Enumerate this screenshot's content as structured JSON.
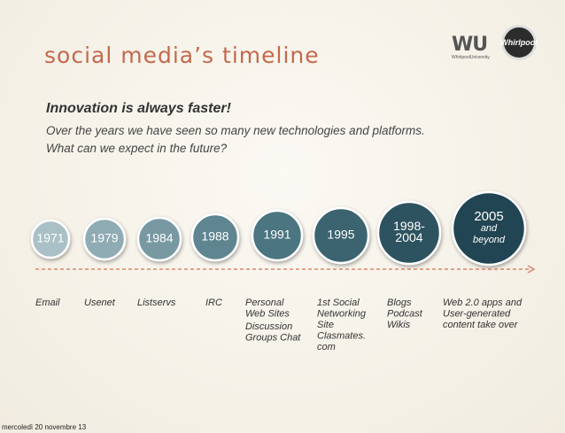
{
  "header": {
    "title": "social media’s timeline",
    "logo_text": "WU",
    "logo_subtext": "WhirlpoolUniversity",
    "badge_text": "Whirlpool"
  },
  "intro": {
    "heading": "Innovation is always faster!",
    "lines": [
      "Over the years we have seen so many new technologies and platforms.",
      "What can we expect in the  future?"
    ]
  },
  "timeline": [
    {
      "year": [
        "1971"
      ],
      "label": [
        "Email"
      ]
    },
    {
      "year": [
        "1979"
      ],
      "label": [
        "Usenet"
      ]
    },
    {
      "year": [
        "1984"
      ],
      "label": [
        "Listservs"
      ]
    },
    {
      "year": [
        "1988"
      ],
      "label": [
        "IRC"
      ]
    },
    {
      "year": [
        "1991"
      ],
      "label": [
        "Personal",
        "Web Sites",
        "Discussion",
        "Groups Chat"
      ]
    },
    {
      "year": [
        "1995"
      ],
      "label": [
        "1st Social",
        "Networking",
        "Site",
        "Clasmates.",
        "com"
      ]
    },
    {
      "year": [
        "1998-",
        "2004"
      ],
      "label": [
        "Blogs",
        "Podcast",
        "Wikis"
      ]
    },
    {
      "year": [
        "2005",
        "and",
        "beyond"
      ],
      "label": [
        "Web 2.0 apps and",
        "User-generated",
        "content take over"
      ]
    }
  ],
  "footer": {
    "date": "mercoledì 20 novembre 13"
  }
}
